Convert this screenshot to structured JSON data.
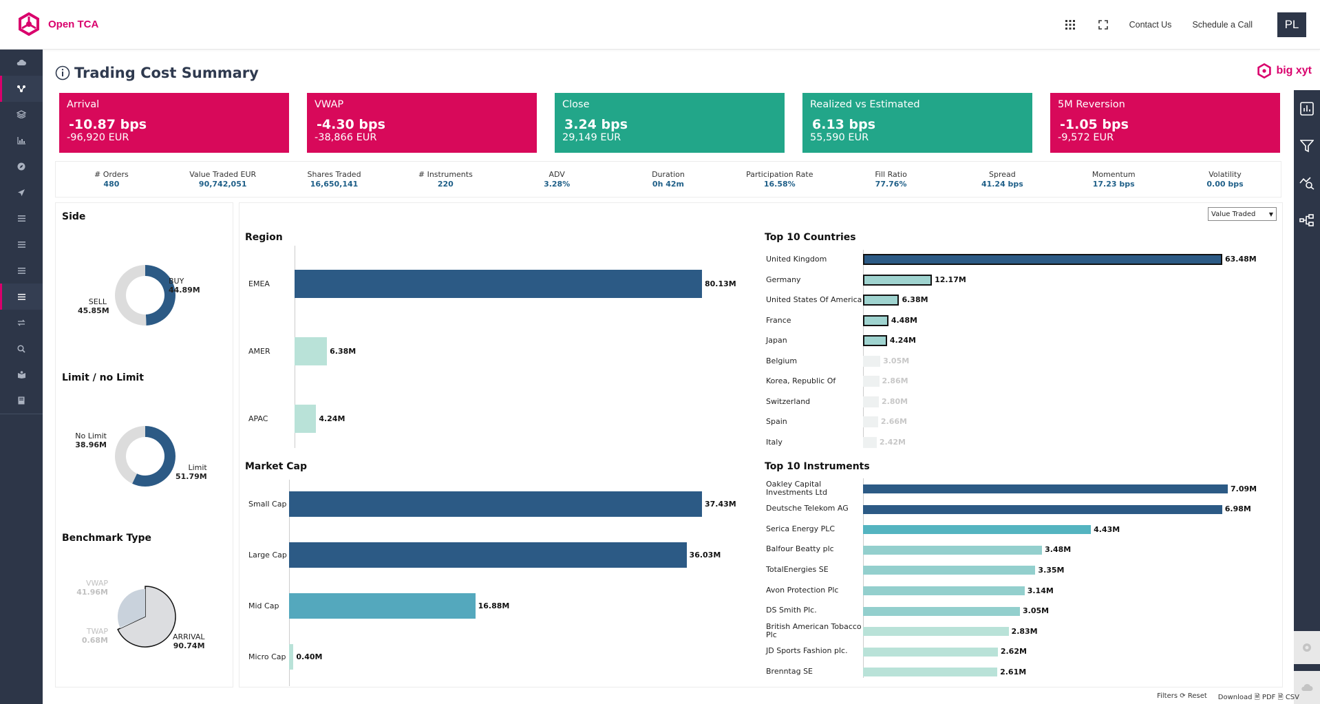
{
  "app": {
    "name": "Open TCA",
    "brand": "big xyt",
    "avatar": "PL"
  },
  "topnav": {
    "contact": "Contact Us",
    "schedule": "Schedule a Call"
  },
  "page": {
    "title": "Trading Cost Summary"
  },
  "kpis": [
    {
      "title": "Arrival",
      "value": "-10.87 bps",
      "eur": "-96,920 EUR",
      "color": "#d8095a"
    },
    {
      "title": "VWAP",
      "value": "-4.30 bps",
      "eur": "-38,866 EUR",
      "color": "#d8095a"
    },
    {
      "title": "Close",
      "value": "3.24 bps",
      "eur": "29,149 EUR",
      "color": "#22a689"
    },
    {
      "title": "Realized vs Estimated",
      "value": "6.13 bps",
      "eur": "55,590 EUR",
      "color": "#22a689"
    },
    {
      "title": "5M Reversion",
      "value": "-1.05 bps",
      "eur": "-9,572 EUR",
      "color": "#d8095a"
    }
  ],
  "stats": [
    {
      "label": "# Orders",
      "value": "480"
    },
    {
      "label": "Value Traded EUR",
      "value": "90,742,051"
    },
    {
      "label": "Shares Traded",
      "value": "16,650,141"
    },
    {
      "label": "# Instruments",
      "value": "220"
    },
    {
      "label": "ADV",
      "value": "3.28%"
    },
    {
      "label": "Duration",
      "value": "0h 42m"
    },
    {
      "label": "Participation Rate",
      "value": "16.58%"
    },
    {
      "label": "Fill Ratio",
      "value": "77.76%"
    },
    {
      "label": "Spread",
      "value": "41.24 bps"
    },
    {
      "label": "Momentum",
      "value": "17.23 bps"
    },
    {
      "label": "Volatility",
      "value": "0.00 bps"
    }
  ],
  "left": {
    "side": {
      "title": "Side",
      "buy_label": "BUY",
      "buy_value": "44.89M",
      "sell_label": "SELL",
      "sell_value": "45.85M"
    },
    "limit": {
      "title": "Limit / no Limit",
      "nolimit_label": "No Limit",
      "nolimit_value": "38.96M",
      "limit_label": "Limit",
      "limit_value": "51.79M"
    },
    "benchmark": {
      "title": "Benchmark Type",
      "vwap_label": "VWAP",
      "vwap_value": "41.96M",
      "twap_label": "TWAP",
      "twap_value": "0.68M",
      "arrival_label": "ARRIVAL",
      "arrival_value": "90.74M"
    }
  },
  "select": {
    "value": "Value Traded"
  },
  "footer": {
    "filters": "Filters",
    "reset": "Reset",
    "download": "Download",
    "pdf": "PDF",
    "csv": "CSV"
  },
  "chart_data": [
    {
      "type": "pie",
      "title": "Side",
      "categories": [
        "BUY",
        "SELL"
      ],
      "values": [
        44.89,
        45.85
      ],
      "unit": "M"
    },
    {
      "type": "pie",
      "title": "Limit / no Limit",
      "categories": [
        "Limit",
        "No Limit"
      ],
      "values": [
        51.79,
        38.96
      ],
      "unit": "M"
    },
    {
      "type": "pie",
      "title": "Benchmark Type",
      "categories": [
        "ARRIVAL",
        "VWAP",
        "TWAP"
      ],
      "values": [
        90.74,
        41.96,
        0.68
      ],
      "unit": "M"
    },
    {
      "type": "bar",
      "title": "Region",
      "categories": [
        "EMEA",
        "AMER",
        "APAC"
      ],
      "values": [
        80.13,
        6.38,
        4.24
      ],
      "labels": [
        "80.13M",
        "6.38M",
        "4.24M"
      ]
    },
    {
      "type": "bar",
      "title": "Market Cap",
      "categories": [
        "Small Cap",
        "Large Cap",
        "Mid Cap",
        "Micro Cap"
      ],
      "values": [
        37.43,
        36.03,
        16.88,
        0.4
      ],
      "labels": [
        "37.43M",
        "36.03M",
        "16.88M",
        "0.40M"
      ]
    },
    {
      "type": "bar",
      "title": "Top 10 Countries",
      "categories": [
        "United Kingdom",
        "Germany",
        "United States Of America",
        "France",
        "Japan",
        "Belgium",
        "Korea, Republic Of",
        "Switzerland",
        "Spain",
        "Italy"
      ],
      "values": [
        63.48,
        12.17,
        6.38,
        4.48,
        4.24,
        3.05,
        2.86,
        2.8,
        2.66,
        2.42
      ],
      "labels": [
        "63.48M",
        "12.17M",
        "6.38M",
        "4.48M",
        "4.24M",
        "3.05M",
        "2.86M",
        "2.80M",
        "2.66M",
        "2.42M"
      ]
    },
    {
      "type": "bar",
      "title": "Top 10 Instruments",
      "categories": [
        "Oakley Capital Investments Ltd",
        "Deutsche Telekom AG",
        "Serica Energy PLC",
        "Balfour Beatty plc",
        "TotalEnergies SE",
        "Avon Protection Plc",
        "DS Smith Plc.",
        "British American Tobacco Plc",
        "JD Sports Fashion plc.",
        "Brenntag SE"
      ],
      "values": [
        7.09,
        6.98,
        4.43,
        3.48,
        3.35,
        3.14,
        3.05,
        2.83,
        2.62,
        2.61
      ],
      "labels": [
        "7.09M",
        "6.98M",
        "4.43M",
        "3.48M",
        "3.35M",
        "3.14M",
        "3.05M",
        "2.83M",
        "2.62M",
        "2.61M"
      ]
    }
  ]
}
